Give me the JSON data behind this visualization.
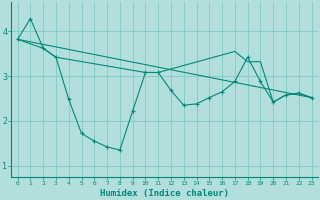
{
  "xlabel": "Humidex (Indice chaleur)",
  "bg_color": "#b2dfdb",
  "grid_color": "#80cbc4",
  "line_color": "#00897b",
  "x_range": [
    -0.5,
    23.5
  ],
  "y_range": [
    0.75,
    4.65
  ],
  "line1_x": [
    0,
    1,
    2,
    3,
    4,
    5,
    6,
    7,
    8,
    9,
    10,
    11,
    12,
    13,
    14,
    15,
    16,
    17,
    18,
    19,
    20,
    21,
    22,
    23
  ],
  "line1_y": [
    3.82,
    4.28,
    3.62,
    3.42,
    2.48,
    1.72,
    1.55,
    1.42,
    1.35,
    2.22,
    3.08,
    3.08,
    2.68,
    2.35,
    2.38,
    2.52,
    2.65,
    2.88,
    3.42,
    2.88,
    2.42,
    2.58,
    2.62,
    2.52
  ],
  "line2_x": [
    0,
    2,
    3,
    10,
    11,
    17,
    18,
    19,
    20,
    21,
    22,
    23
  ],
  "line2_y": [
    3.82,
    3.62,
    3.42,
    3.08,
    3.08,
    3.55,
    3.32,
    3.32,
    2.42,
    2.58,
    2.62,
    2.52
  ],
  "line3_x": [
    0,
    23
  ],
  "line3_y": [
    3.82,
    2.52
  ],
  "yticks": [
    1,
    2,
    3,
    4
  ],
  "xticks": [
    0,
    1,
    2,
    3,
    4,
    5,
    6,
    7,
    8,
    9,
    10,
    11,
    12,
    13,
    14,
    15,
    16,
    17,
    18,
    19,
    20,
    21,
    22,
    23
  ]
}
